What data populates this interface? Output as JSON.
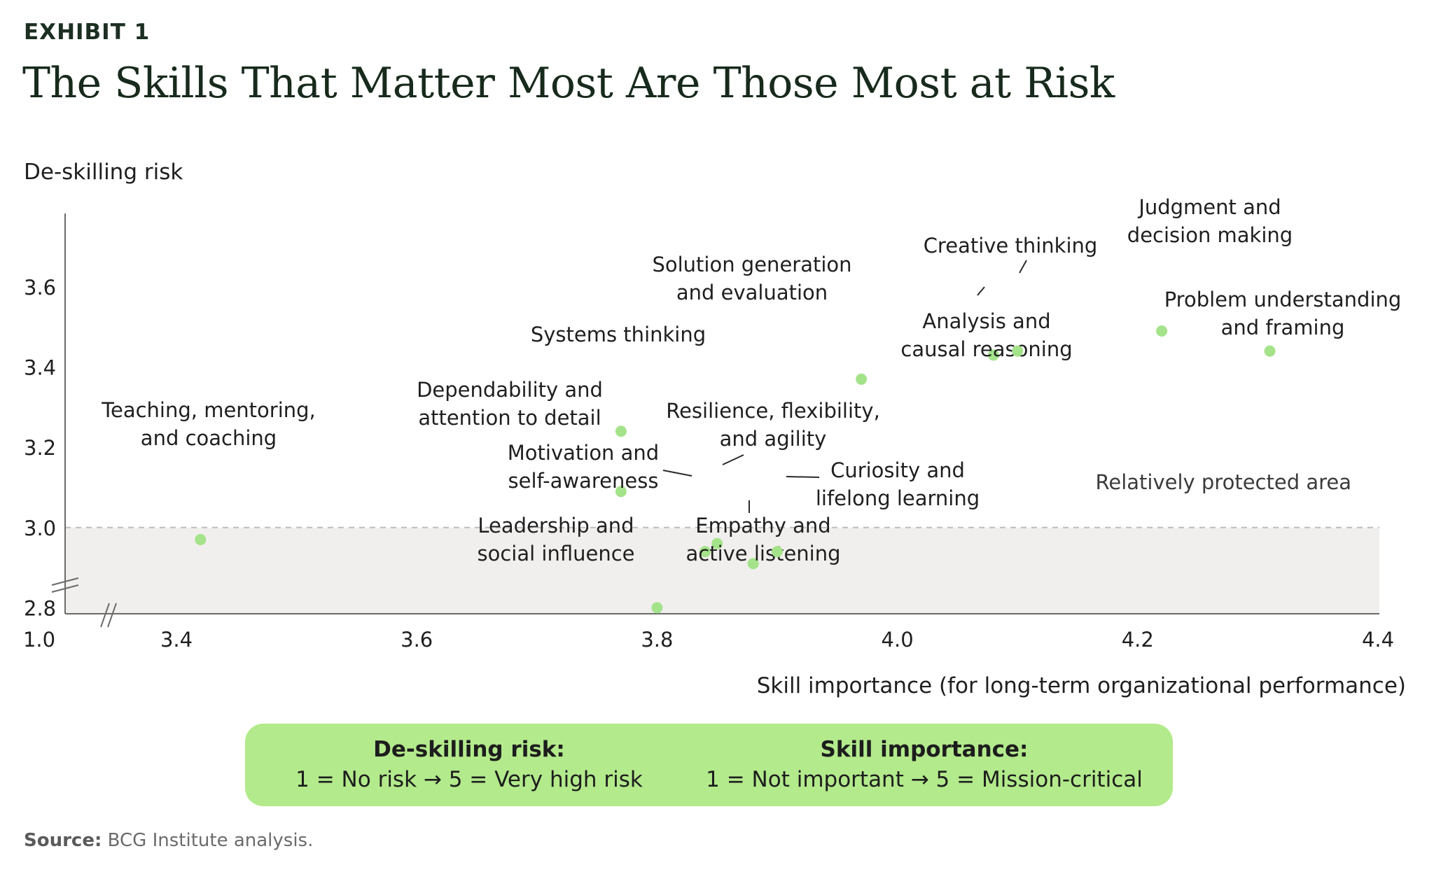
{
  "exhibit_label": "EXHIBIT 1",
  "title": "The Skills That Matter Most Are Those Most at Risk",
  "chart_data": {
    "type": "scatter",
    "ylabel": "De-skilling risk",
    "xlabel": "Skill importance (for long-term organizational performance)",
    "x_break_label": "1.0",
    "xlim": [
      3.3,
      4.4
    ],
    "ylim": [
      2.61,
      3.6
    ],
    "x_ticks": [
      3.4,
      3.6,
      3.8,
      4.0,
      4.2,
      4.4
    ],
    "y_ticks": [
      2.8,
      3.0,
      3.2,
      3.4,
      3.6
    ],
    "protected_threshold": 3.0,
    "protected_area_label": "Relatively protected area",
    "point_color": "#a4e38a",
    "points": [
      {
        "name": "Teaching, mentoring, and coaching",
        "lines": [
          "Teaching, mentoring,",
          "and coaching"
        ],
        "x": 3.42,
        "y": 2.97
      },
      {
        "name": "Systems thinking",
        "lines": [
          "Systems thinking"
        ],
        "x": 3.77,
        "y": 3.24
      },
      {
        "name": "Dependability and attention to detail",
        "lines": [
          "Dependability and",
          "attention to detail"
        ],
        "x": 3.77,
        "y": 3.09
      },
      {
        "name": "Motivation and self-awareness",
        "lines": [
          "Motivation and",
          "self-awareness"
        ],
        "x": 3.84,
        "y": 2.94
      },
      {
        "name": "Resilience, flexibility, and agility",
        "lines": [
          "Resilience, flexibility,",
          "and agility"
        ],
        "x": 3.85,
        "y": 2.96
      },
      {
        "name": "Empathy and active listening",
        "lines": [
          "Empathy and",
          "active listening"
        ],
        "x": 3.88,
        "y": 2.91
      },
      {
        "name": "Curiosity and lifelong learning",
        "lines": [
          "Curiosity and",
          "lifelong learning"
        ],
        "x": 3.9,
        "y": 2.94
      },
      {
        "name": "Leadership and social influence",
        "lines": [
          "Leadership and",
          "social influence"
        ],
        "x": 3.8,
        "y": 2.8
      },
      {
        "name": "Solution generation and evaluation",
        "lines": [
          "Solution generation",
          "and evaluation"
        ],
        "x": 3.97,
        "y": 3.37
      },
      {
        "name": "Analysis and causal reasoning",
        "lines": [
          "Analysis and",
          "causal reasoning"
        ],
        "x": 4.08,
        "y": 3.43
      },
      {
        "name": "Creative thinking",
        "lines": [
          "Creative thinking"
        ],
        "x": 4.1,
        "y": 3.44
      },
      {
        "name": "Judgment and decision making",
        "lines": [
          "Judgment and",
          "decision making"
        ],
        "x": 4.22,
        "y": 3.49
      },
      {
        "name": "Problem understanding and framing",
        "lines": [
          "Problem understanding",
          "and framing"
        ],
        "x": 4.31,
        "y": 3.44
      }
    ]
  },
  "legend": {
    "risk_heading": "De-skilling risk:",
    "risk_scale": "1 = No risk → 5 = Very high risk",
    "importance_heading": "Skill importance:",
    "importance_scale": "1 = Not important → 5 = Mission-critical"
  },
  "source": {
    "label": "Source:",
    "text": "BCG Institute analysis."
  }
}
